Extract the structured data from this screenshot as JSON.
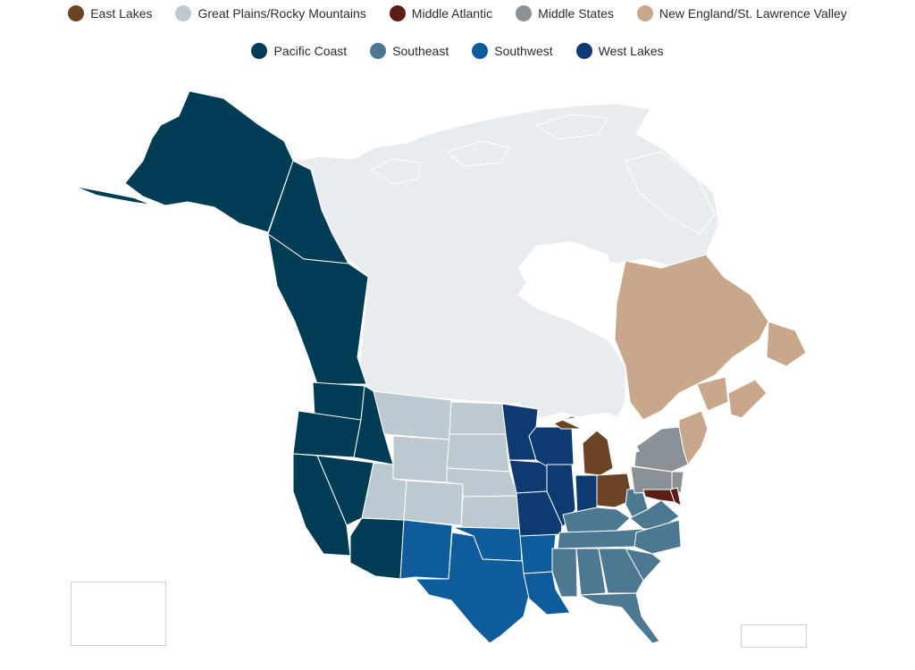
{
  "colors": {
    "east_lakes": "#6b4423",
    "great_plains": "#bcc9d0",
    "middle_atlantic": "#5a1e16",
    "middle_states": "#8b9297",
    "new_england": "#c9a78a",
    "pacific_coast": "#003c54",
    "southeast": "#4d7892",
    "southwest": "#0f5c9c",
    "west_lakes": "#0d3a70",
    "canada_base": "#e8ecee",
    "border": "#ffffff"
  },
  "legend": {
    "row1": [
      {
        "label": "East Lakes",
        "color_key": "east_lakes"
      },
      {
        "label": "Great Plains/Rocky Mountains",
        "color_key": "great_plains"
      },
      {
        "label": "Middle Atlantic",
        "color_key": "middle_atlantic"
      },
      {
        "label": "Middle States",
        "color_key": "middle_states"
      },
      {
        "label": "New England/St. Lawrence Valley",
        "color_key": "new_england"
      }
    ],
    "row2": [
      {
        "label": "Pacific Coast",
        "color_key": "pacific_coast"
      },
      {
        "label": "Southeast",
        "color_key": "southeast"
      },
      {
        "label": "Southwest",
        "color_key": "southwest"
      },
      {
        "label": "West Lakes",
        "color_key": "west_lakes"
      }
    ]
  }
}
